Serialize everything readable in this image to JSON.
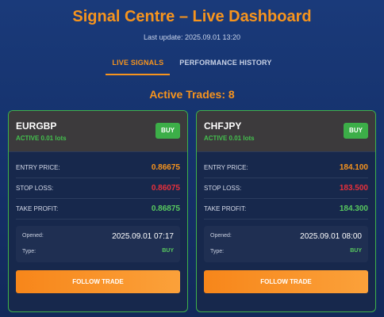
{
  "header": {
    "title": "Signal Centre – Live Dashboard",
    "last_update": "Last update: 2025.09.01 13:20"
  },
  "tabs": [
    {
      "label": "LIVE SIGNALS",
      "active": true
    },
    {
      "label": "PERFORMANCE HISTORY",
      "active": false
    }
  ],
  "active_trades": "Active Trades: 8",
  "colors": {
    "accent": "#f7941d",
    "buy": "#3cae48",
    "stop_loss": "#e8303b",
    "take_profit": "#58c95f",
    "card_border": "#3fb24a"
  },
  "cards": [
    {
      "pair": "EURGBP",
      "status": "ACTIVE 0.01 lots",
      "direction": "BUY",
      "entry_label": "ENTRY PRICE:",
      "entry": "0.86675",
      "stop_label": "STOP LOSS:",
      "stop": "0.86075",
      "take_label": "TAKE PROFIT:",
      "take": "0.86875",
      "opened_label": "Opened:",
      "opened": "2025.09.01 07:17",
      "type_label": "Type:",
      "type": "BUY",
      "button": "FOLLOW TRADE"
    },
    {
      "pair": "CHFJPY",
      "status": "ACTIVE 0.01 lots",
      "direction": "BUY",
      "entry_label": "ENTRY PRICE:",
      "entry": "184.100",
      "stop_label": "STOP LOSS:",
      "stop": "183.500",
      "take_label": "TAKE PROFIT:",
      "take": "184.300",
      "opened_label": "Opened:",
      "opened": "2025.09.01 08:00",
      "type_label": "Type:",
      "type": "BUY",
      "button": "FOLLOW TRADE"
    }
  ]
}
